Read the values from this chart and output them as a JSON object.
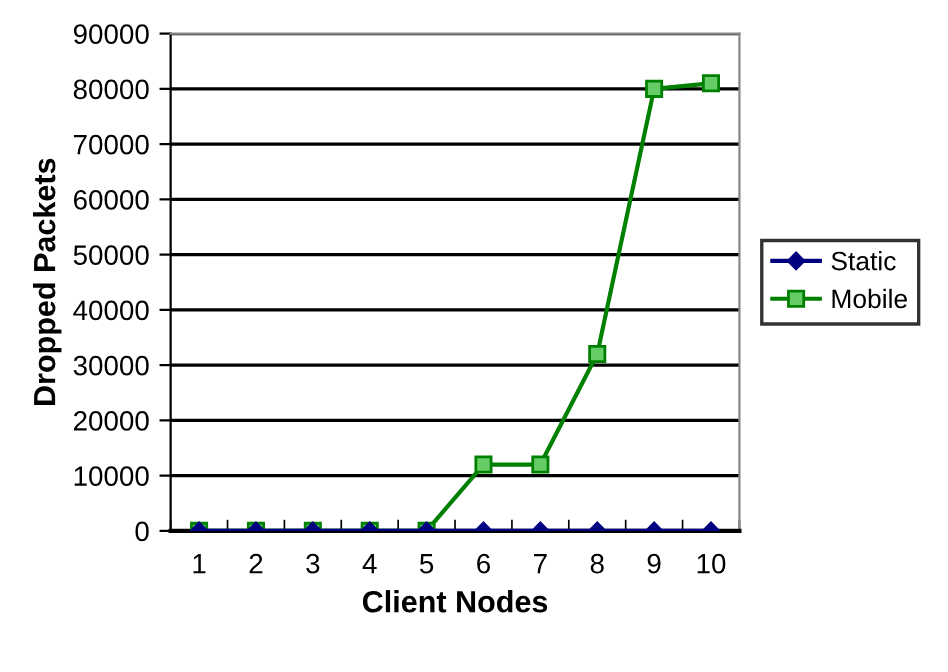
{
  "chart_data": {
    "type": "line",
    "xlabel": "Client Nodes",
    "ylabel": "Dropped Packets",
    "categories": [
      "1",
      "2",
      "3",
      "4",
      "5",
      "6",
      "7",
      "8",
      "9",
      "10"
    ],
    "series": [
      {
        "name": "Static",
        "color": "#000080",
        "marker": "diamond",
        "values": [
          0,
          0,
          0,
          0,
          0,
          0,
          0,
          0,
          0,
          0
        ]
      },
      {
        "name": "Mobile",
        "color": "#008000",
        "marker": "square",
        "values": [
          0,
          0,
          0,
          0,
          0,
          12000,
          12000,
          32000,
          80000,
          81000
        ]
      }
    ],
    "ylim": [
      0,
      90000
    ],
    "yticks": [
      0,
      10000,
      20000,
      30000,
      40000,
      50000,
      60000,
      70000,
      80000,
      90000
    ],
    "grid": "y",
    "legend": "right",
    "line_style": "solid"
  }
}
